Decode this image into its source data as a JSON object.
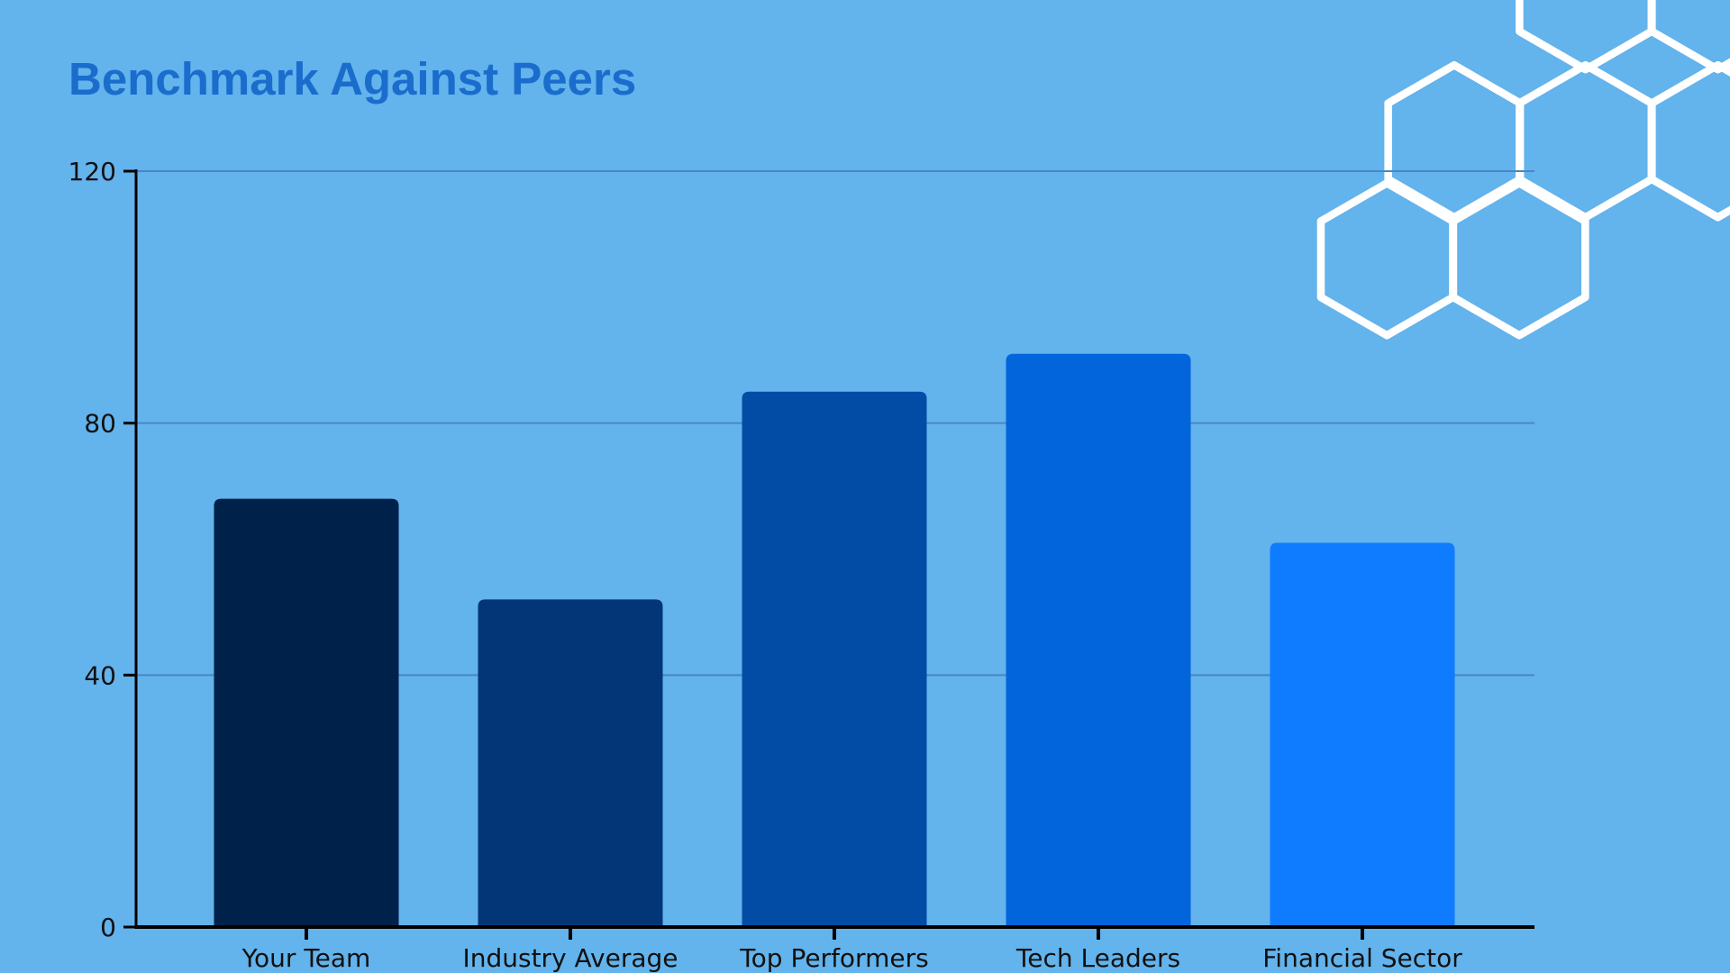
{
  "chart_data": {
    "type": "bar",
    "title": "Benchmark Against Peers",
    "categories": [
      "Your Team",
      "Industry Average",
      "Top Performers",
      "Tech Leaders",
      "Financial Sector"
    ],
    "values": [
      68,
      52,
      85,
      91,
      61
    ],
    "colors": [
      "#00214a",
      "#033677",
      "#034ca6",
      "#0365dc",
      "#0f7bff"
    ],
    "ylim": [
      0,
      120
    ],
    "yticks": [
      0,
      40,
      80,
      120
    ],
    "xlabel": "",
    "ylabel": "",
    "grid": true,
    "background": "#63b3ec",
    "decoration": "white-hexagon-outlines"
  }
}
